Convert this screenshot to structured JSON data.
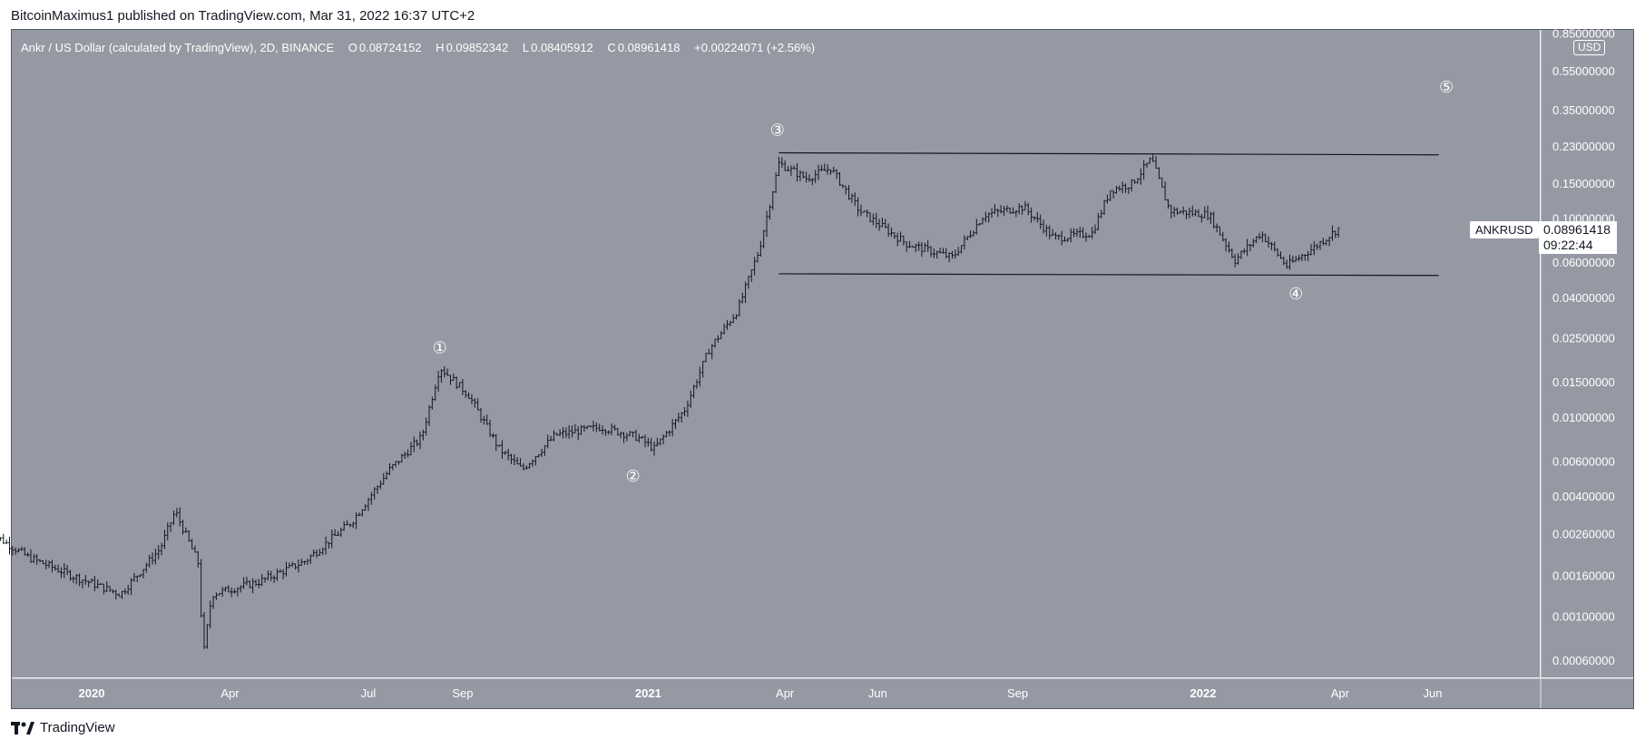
{
  "header": {
    "publisher_line": "BitcoinMaximus1 published on TradingView.com, Mar 31, 2022 16:37 UTC+2"
  },
  "footer": {
    "brand": "TradingView"
  },
  "legend": {
    "symbol": "Ankr / US Dollar (calculated by TradingView), 2D, BINANCE",
    "o_label": "O",
    "o": "0.08724152",
    "h_label": "H",
    "h": "0.09852342",
    "l_label": "L",
    "l": "0.08405912",
    "c_label": "C",
    "c": "0.08961418",
    "change": "+0.00224071 (+2.56%)"
  },
  "currency_badge": "USD",
  "price_tag": {
    "symbol": "ANKRUSD",
    "price": "0.08961418",
    "countdown": "09:22:44"
  },
  "colors": {
    "plot_bg": "#9599a3",
    "axis_bg": "#9599a3",
    "candle": "#131722",
    "text": "#ffffff"
  },
  "chart_data": {
    "type": "candlestick",
    "scale": "log",
    "ylim": [
      0.0005,
      0.9
    ],
    "y_ticks": [
      {
        "value": 0.85,
        "label": "0.85000000"
      },
      {
        "value": 0.55,
        "label": "0.55000000"
      },
      {
        "value": 0.35,
        "label": "0.35000000"
      },
      {
        "value": 0.23,
        "label": "0.23000000"
      },
      {
        "value": 0.15,
        "label": "0.15000000"
      },
      {
        "value": 0.1,
        "label": "0.10000000"
      },
      {
        "value": 0.06,
        "label": "0.06000000"
      },
      {
        "value": 0.04,
        "label": "0.04000000"
      },
      {
        "value": 0.025,
        "label": "0.02500000"
      },
      {
        "value": 0.015,
        "label": "0.01500000"
      },
      {
        "value": 0.01,
        "label": "0.01000000"
      },
      {
        "value": 0.006,
        "label": "0.00600000"
      },
      {
        "value": 0.004,
        "label": "0.00400000"
      },
      {
        "value": 0.0026,
        "label": "0.00260000"
      },
      {
        "value": 0.0016,
        "label": "0.00160000"
      },
      {
        "value": 0.001,
        "label": "0.00100000"
      },
      {
        "value": 0.0006,
        "label": "0.00060000"
      }
    ],
    "x_ticks": [
      {
        "date": "2020-01-01",
        "label": "2020",
        "bold": true
      },
      {
        "date": "2020-04-01",
        "label": "Apr",
        "bold": false
      },
      {
        "date": "2020-07-01",
        "label": "Jul",
        "bold": false
      },
      {
        "date": "2020-09-01",
        "label": "Sep",
        "bold": false
      },
      {
        "date": "2021-01-01",
        "label": "2021",
        "bold": true
      },
      {
        "date": "2021-04-01",
        "label": "Apr",
        "bold": false
      },
      {
        "date": "2021-06-01",
        "label": "Jun",
        "bold": false
      },
      {
        "date": "2021-09-01",
        "label": "Sep",
        "bold": false
      },
      {
        "date": "2022-01-01",
        "label": "2022",
        "bold": true
      },
      {
        "date": "2022-04-01",
        "label": "Apr",
        "bold": false
      },
      {
        "date": "2022-06-01",
        "label": "Jun",
        "bold": false
      }
    ],
    "price_path": [
      {
        "date": "2019-10-25",
        "close": 0.0027
      },
      {
        "date": "2019-11-20",
        "close": 0.002
      },
      {
        "date": "2019-12-20",
        "close": 0.0016
      },
      {
        "date": "2020-01-20",
        "close": 0.0013
      },
      {
        "date": "2020-02-15",
        "close": 0.0022
      },
      {
        "date": "2020-02-25",
        "close": 0.0034
      },
      {
        "date": "2020-03-12",
        "close": 0.0018
      },
      {
        "date": "2020-03-14",
        "close": 0.0006
      },
      {
        "date": "2020-03-20",
        "close": 0.0013
      },
      {
        "date": "2020-04-20",
        "close": 0.0015
      },
      {
        "date": "2020-05-20",
        "close": 0.0019
      },
      {
        "date": "2020-06-20",
        "close": 0.003
      },
      {
        "date": "2020-07-15",
        "close": 0.0055
      },
      {
        "date": "2020-08-05",
        "close": 0.008
      },
      {
        "date": "2020-08-17",
        "close": 0.018
      },
      {
        "date": "2020-09-05",
        "close": 0.013
      },
      {
        "date": "2020-09-25",
        "close": 0.007
      },
      {
        "date": "2020-10-10",
        "close": 0.0055
      },
      {
        "date": "2020-11-01",
        "close": 0.0082
      },
      {
        "date": "2020-12-01",
        "close": 0.009
      },
      {
        "date": "2020-12-25",
        "close": 0.008
      },
      {
        "date": "2021-01-05",
        "close": 0.007
      },
      {
        "date": "2021-01-25",
        "close": 0.011
      },
      {
        "date": "2021-02-10",
        "close": 0.022
      },
      {
        "date": "2021-03-01",
        "close": 0.035
      },
      {
        "date": "2021-03-15",
        "close": 0.07
      },
      {
        "date": "2021-03-28",
        "close": 0.19
      },
      {
        "date": "2021-04-15",
        "close": 0.16
      },
      {
        "date": "2021-05-01",
        "close": 0.18
      },
      {
        "date": "2021-05-20",
        "close": 0.11
      },
      {
        "date": "2021-06-20",
        "close": 0.075
      },
      {
        "date": "2021-07-20",
        "close": 0.064
      },
      {
        "date": "2021-08-10",
        "close": 0.105
      },
      {
        "date": "2021-09-05",
        "close": 0.115
      },
      {
        "date": "2021-09-25",
        "close": 0.08
      },
      {
        "date": "2021-10-20",
        "close": 0.085
      },
      {
        "date": "2021-11-01",
        "close": 0.14
      },
      {
        "date": "2021-11-15",
        "close": 0.15
      },
      {
        "date": "2021-11-28",
        "close": 0.2
      },
      {
        "date": "2021-12-10",
        "close": 0.11
      },
      {
        "date": "2022-01-05",
        "close": 0.105
      },
      {
        "date": "2022-01-22",
        "close": 0.062
      },
      {
        "date": "2022-02-08",
        "close": 0.085
      },
      {
        "date": "2022-02-25",
        "close": 0.058
      },
      {
        "date": "2022-03-15",
        "close": 0.072
      },
      {
        "date": "2022-03-31",
        "close": 0.0896
      }
    ],
    "lines": [
      {
        "name": "resistance",
        "from": {
          "date": "2021-03-28",
          "value": 0.215
        },
        "to": {
          "date": "2022-06-05",
          "value": 0.21
        }
      },
      {
        "name": "support",
        "from": {
          "date": "2021-03-28",
          "value": 0.053
        },
        "to": {
          "date": "2022-06-05",
          "value": 0.052
        }
      }
    ],
    "wave_labels": [
      {
        "label": "①",
        "date": "2020-08-17",
        "value": 0.0225
      },
      {
        "label": "②",
        "date": "2020-12-22",
        "value": 0.0051
      },
      {
        "label": "③",
        "date": "2021-03-27",
        "value": 0.28
      },
      {
        "label": "④",
        "date": "2022-03-03",
        "value": 0.042
      },
      {
        "label": "⑤",
        "date": "2022-06-10",
        "value": 0.46
      }
    ]
  }
}
